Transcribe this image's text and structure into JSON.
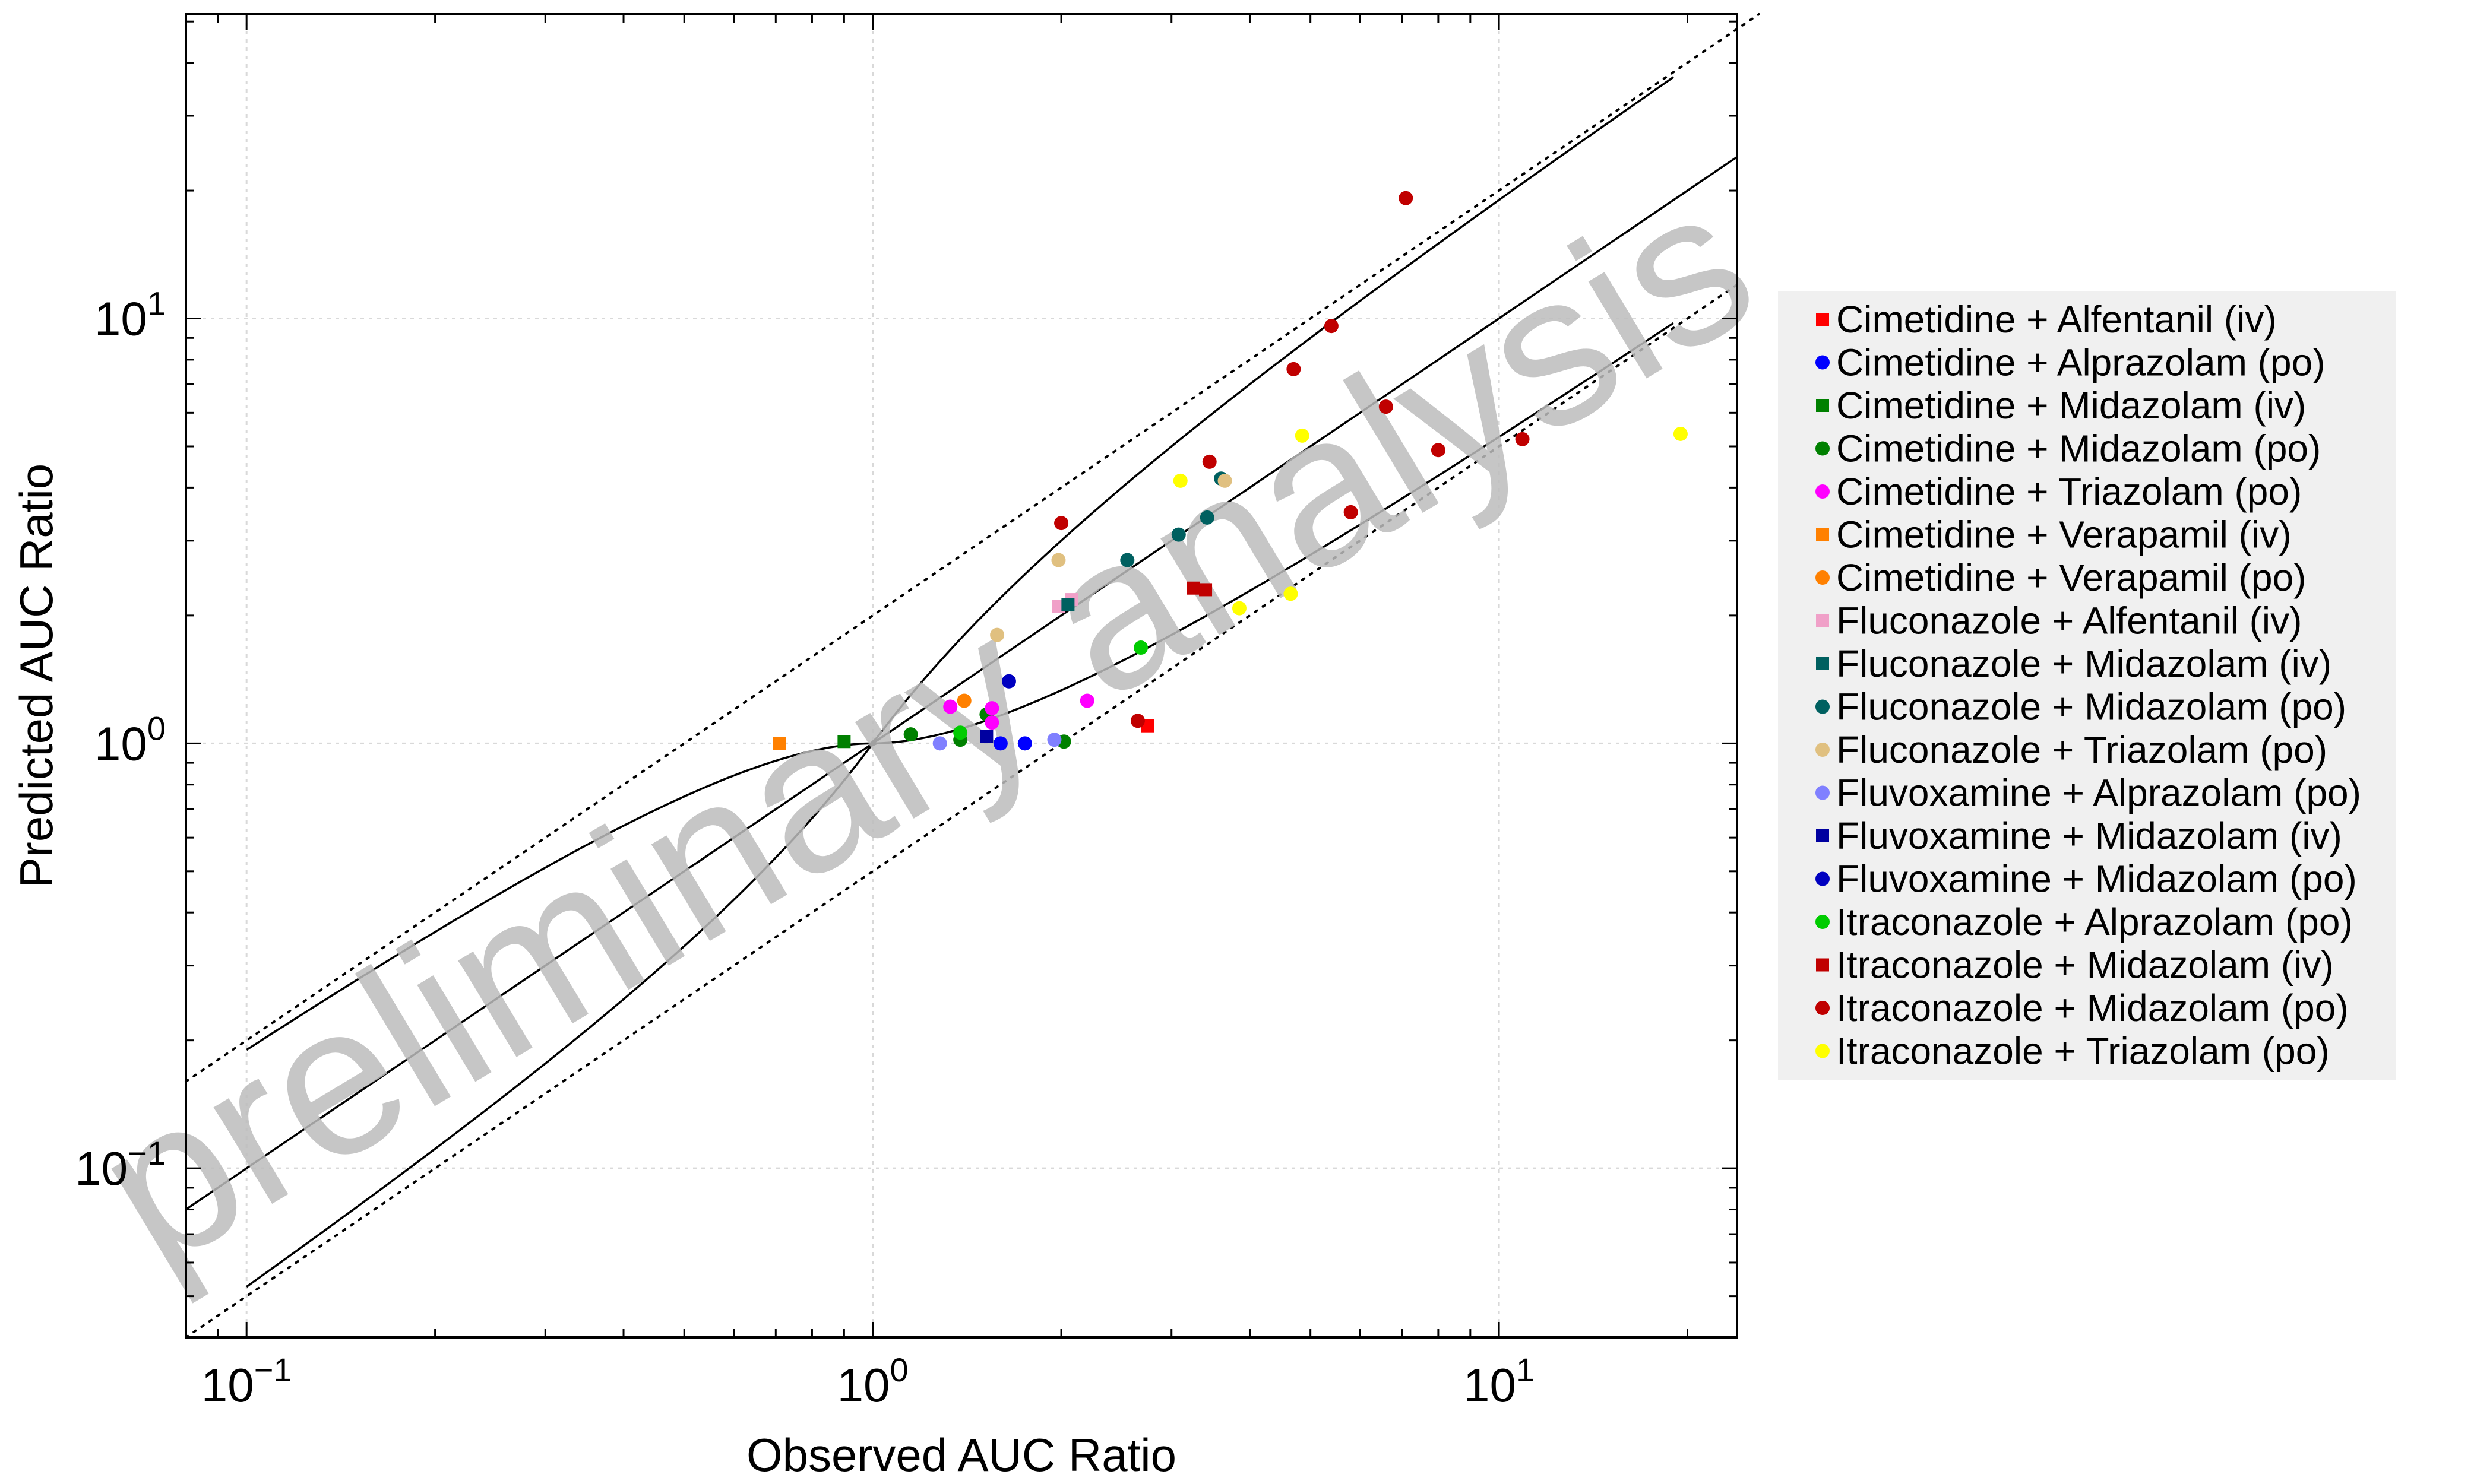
{
  "chart_data": {
    "type": "scatter",
    "xlabel": "Observed AUC Ratio",
    "ylabel": "Predicted AUC Ratio",
    "x_scale": "log",
    "y_scale": "log",
    "xlim": [
      0.08,
      24
    ],
    "ylim": [
      0.04,
      52
    ],
    "x_ticks": [
      0.1,
      1,
      10
    ],
    "y_ticks": [
      0.1,
      1,
      10
    ],
    "x_tick_labels": [
      {
        "base": "10",
        "exp": "−1"
      },
      {
        "base": "10",
        "exp": "0"
      },
      {
        "base": "10",
        "exp": "1"
      }
    ],
    "y_tick_labels": [
      {
        "base": "10",
        "exp": "−1"
      },
      {
        "base": "10",
        "exp": "0"
      },
      {
        "base": "10",
        "exp": "1"
      }
    ],
    "grid": true,
    "legend_position": "right",
    "watermark": "preliminary analysis",
    "reference_lines": [
      {
        "kind": "identity",
        "style": "solid"
      },
      {
        "kind": "guest-upper",
        "style": "solid"
      },
      {
        "kind": "guest-lower",
        "style": "solid"
      },
      {
        "kind": "2-fold-upper",
        "style": "dotted"
      },
      {
        "kind": "2-fold-lower",
        "style": "dotted"
      }
    ],
    "series": [
      {
        "name": "Cimetidine + Alfentanil (iv)",
        "marker": "square",
        "color": "#ff0000",
        "points": [
          [
            2.75,
            1.1
          ]
        ]
      },
      {
        "name": "Cimetidine + Alprazolam (po)",
        "marker": "circle",
        "color": "#0000ff",
        "points": [
          [
            1.6,
            1.0
          ],
          [
            1.75,
            1.0
          ]
        ]
      },
      {
        "name": "Cimetidine + Midazolam (iv)",
        "marker": "square",
        "color": "#008000",
        "points": [
          [
            0.9,
            1.01
          ]
        ]
      },
      {
        "name": "Cimetidine + Midazolam (po)",
        "marker": "circle",
        "color": "#008000",
        "points": [
          [
            1.15,
            1.05
          ],
          [
            1.38,
            1.02
          ],
          [
            1.52,
            1.17
          ],
          [
            2.02,
            1.01
          ]
        ]
      },
      {
        "name": "Cimetidine + Triazolam (po)",
        "marker": "circle",
        "color": "#ff00ff",
        "points": [
          [
            1.33,
            1.22
          ],
          [
            1.55,
            1.21
          ],
          [
            1.55,
            1.12
          ],
          [
            2.2,
            1.26
          ]
        ]
      },
      {
        "name": "Cimetidine + Verapamil (iv)",
        "marker": "square",
        "color": "#ff8000",
        "points": [
          [
            0.71,
            1.0
          ]
        ]
      },
      {
        "name": "Cimetidine + Verapamil (po)",
        "marker": "circle",
        "color": "#ff8000",
        "points": [
          [
            1.4,
            1.26
          ]
        ]
      },
      {
        "name": "Fluconazole + Alfentanil (iv)",
        "marker": "square",
        "color": "#f0a0c8",
        "points": [
          [
            1.98,
            2.1
          ],
          [
            2.08,
            2.18
          ]
        ]
      },
      {
        "name": "Fluconazole + Midazolam (iv)",
        "marker": "square",
        "color": "#006060",
        "points": [
          [
            2.05,
            2.12
          ]
        ]
      },
      {
        "name": "Fluconazole + Midazolam (po)",
        "marker": "circle",
        "color": "#006060",
        "points": [
          [
            2.55,
            2.7
          ],
          [
            3.08,
            3.1
          ],
          [
            3.42,
            3.4
          ],
          [
            3.6,
            4.2
          ]
        ]
      },
      {
        "name": "Fluconazole + Triazolam (po)",
        "marker": "circle",
        "color": "#e0c080",
        "points": [
          [
            1.98,
            2.7
          ],
          [
            1.58,
            1.8
          ],
          [
            3.65,
            4.15
          ]
        ]
      },
      {
        "name": "Fluvoxamine + Alprazolam (po)",
        "marker": "circle",
        "color": "#8080ff",
        "points": [
          [
            1.28,
            1.0
          ],
          [
            1.95,
            1.02
          ]
        ]
      },
      {
        "name": "Fluvoxamine + Midazolam (iv)",
        "marker": "square",
        "color": "#0000a0",
        "points": [
          [
            1.52,
            1.04
          ]
        ]
      },
      {
        "name": "Fluvoxamine + Midazolam (po)",
        "marker": "circle",
        "color": "#0000c0",
        "points": [
          [
            1.65,
            1.4
          ]
        ]
      },
      {
        "name": "Itraconazole + Alprazolam (po)",
        "marker": "circle",
        "color": "#00cc00",
        "points": [
          [
            1.38,
            1.06
          ],
          [
            2.68,
            1.68
          ]
        ]
      },
      {
        "name": "Itraconazole + Midazolam (iv)",
        "marker": "square",
        "color": "#c00000",
        "points": [
          [
            3.25,
            2.32
          ],
          [
            3.4,
            2.3
          ]
        ]
      },
      {
        "name": "Itraconazole + Midazolam (po)",
        "marker": "circle",
        "color": "#c00000",
        "points": [
          [
            2.0,
            3.3
          ],
          [
            2.65,
            1.13
          ],
          [
            3.45,
            4.6
          ],
          [
            4.7,
            7.6
          ],
          [
            5.4,
            9.6
          ],
          [
            5.8,
            3.5
          ],
          [
            6.6,
            6.2
          ],
          [
            7.1,
            19.2
          ],
          [
            8.0,
            4.9
          ],
          [
            10.9,
            5.2
          ]
        ]
      },
      {
        "name": "Itraconazole + Triazolam (po)",
        "marker": "circle",
        "color": "#ffff00",
        "points": [
          [
            3.1,
            4.15
          ],
          [
            3.85,
            2.08
          ],
          [
            4.65,
            2.25
          ],
          [
            4.85,
            5.3
          ],
          [
            19.5,
            5.35
          ]
        ]
      }
    ]
  }
}
